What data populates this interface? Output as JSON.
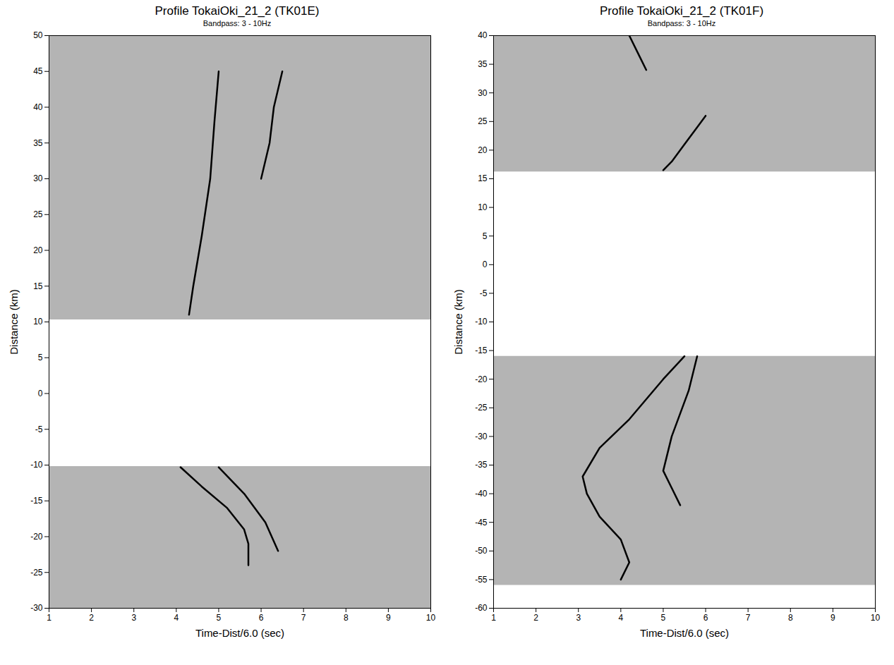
{
  "chart_data": [
    {
      "type": "line",
      "title": "Profile TokaiOki_21_2 (TK01E)",
      "subtitle": "Bandpass: 3 - 10Hz",
      "x_label": "Time-Dist/6.0 (sec)",
      "y_label": "Distance (km)",
      "xlim": [
        1,
        10
      ],
      "xticks": [
        1,
        2,
        3,
        4,
        5,
        6,
        7,
        8,
        9,
        10
      ],
      "ylim": [
        -30,
        50
      ],
      "yticks": [
        -30,
        -25,
        -20,
        -15,
        -10,
        -5,
        0,
        5,
        10,
        15,
        20,
        25,
        30,
        35,
        40,
        45,
        50
      ],
      "grid": false,
      "series": [
        {
          "type": "area",
          "color": "#b4b4b4",
          "x": [
            1,
            10
          ],
          "values": [
            50,
            50
          ],
          "base": [
            10.3,
            10.3
          ]
        },
        {
          "type": "area",
          "color": "#b4b4b4",
          "x": [
            1,
            10
          ],
          "values": [
            -10.2,
            -10.2
          ],
          "base": [
            -30,
            -30
          ]
        },
        {
          "type": "line",
          "color": "#000000",
          "x": [
            4.3,
            4.4,
            4.6,
            4.8,
            4.9,
            5.0
          ],
          "values": [
            11,
            15,
            22,
            30,
            38,
            45
          ]
        },
        {
          "type": "line",
          "color": "#000000",
          "x": [
            6.0,
            6.2,
            6.3,
            6.5
          ],
          "values": [
            30,
            35,
            40,
            45
          ]
        },
        {
          "type": "line",
          "color": "#000000",
          "x": [
            4.1,
            4.6,
            5.2,
            5.6,
            5.7,
            5.7
          ],
          "values": [
            -10.3,
            -13,
            -16,
            -19,
            -21,
            -24
          ]
        },
        {
          "type": "line",
          "color": "#000000",
          "x": [
            5.0,
            5.6,
            6.1,
            6.4
          ],
          "values": [
            -10.3,
            -14,
            -18,
            -22
          ]
        }
      ]
    },
    {
      "type": "line",
      "title": "Profile TokaiOki_21_2 (TK01F)",
      "subtitle": "Bandpass: 3 - 10Hz",
      "x_label": "Time-Dist/6.0 (sec)",
      "y_label": "Distance (km)",
      "xlim": [
        1,
        10
      ],
      "xticks": [
        1,
        2,
        3,
        4,
        5,
        6,
        7,
        8,
        9,
        10
      ],
      "ylim": [
        -60,
        40
      ],
      "yticks": [
        -60,
        -55,
        -50,
        -45,
        -40,
        -35,
        -30,
        -25,
        -20,
        -15,
        -10,
        -5,
        0,
        5,
        10,
        15,
        20,
        25,
        30,
        35,
        40
      ],
      "grid": false,
      "series": [
        {
          "type": "area",
          "color": "#b4b4b4",
          "x": [
            1,
            10
          ],
          "values": [
            40,
            40
          ],
          "base": [
            16.2,
            16.2
          ]
        },
        {
          "type": "area",
          "color": "#b4b4b4",
          "x": [
            1,
            10
          ],
          "values": [
            -16,
            -16
          ],
          "base": [
            -56,
            -56
          ]
        },
        {
          "type": "line",
          "color": "#000000",
          "x": [
            5.5,
            5.0,
            4.2,
            3.5,
            3.1,
            3.2,
            3.5,
            4.0,
            4.2,
            4.0
          ],
          "values": [
            -16,
            -20,
            -27,
            -32,
            -37,
            -40,
            -44,
            -48,
            -52,
            -55
          ]
        },
        {
          "type": "line",
          "color": "#000000",
          "x": [
            5.8,
            5.6,
            5.2,
            5.0,
            5.2,
            5.4
          ],
          "values": [
            -16,
            -22,
            -30,
            -36,
            -39,
            -42
          ]
        },
        {
          "type": "line",
          "color": "#000000",
          "x": [
            5.0,
            5.2,
            5.5,
            5.8,
            6.0
          ],
          "values": [
            16.5,
            18,
            21,
            24,
            26
          ]
        },
        {
          "type": "line",
          "color": "#000000",
          "x": [
            4.2,
            4.4,
            4.6
          ],
          "values": [
            40,
            37,
            34
          ]
        }
      ]
    }
  ]
}
